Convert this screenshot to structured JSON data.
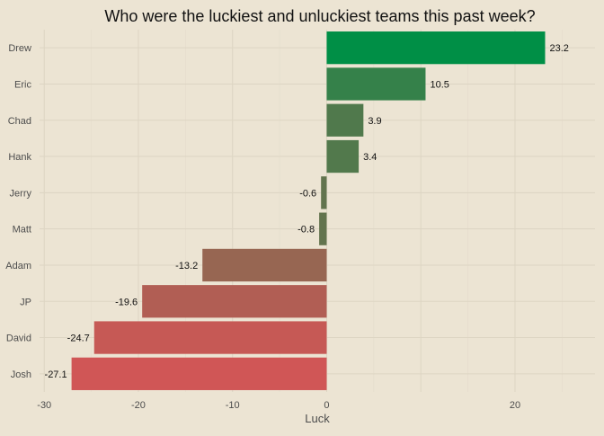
{
  "chart_data": {
    "type": "bar",
    "orientation": "horizontal",
    "title": "Who were the luckiest and unluckiest teams this past week?",
    "xlabel": "Luck",
    "ylabel": "",
    "categories": [
      "Drew",
      "Eric",
      "Chad",
      "Hank",
      "Jerry",
      "Matt",
      "Adam",
      "JP",
      "David",
      "Josh"
    ],
    "values": [
      23.2,
      10.5,
      3.9,
      3.4,
      -0.6,
      -0.8,
      -13.2,
      -19.6,
      -24.7,
      -27.1
    ],
    "data_labels": [
      "23.2",
      "10.5",
      "3.9",
      "3.4",
      "-0.6",
      "-0.8",
      "-13.2",
      "-19.6",
      "-24.7",
      "-27.1"
    ],
    "xlim": [
      -30.5,
      28.5
    ],
    "xticks": [
      -30,
      -20,
      -10,
      0,
      20
    ],
    "xtick_labels": [
      "-30",
      "-20",
      "-10",
      "0",
      "20"
    ],
    "grid": true,
    "legend": "none",
    "colors": {
      "background": "#ECE4D3",
      "high": "#008F46",
      "low": "#D05656"
    }
  }
}
